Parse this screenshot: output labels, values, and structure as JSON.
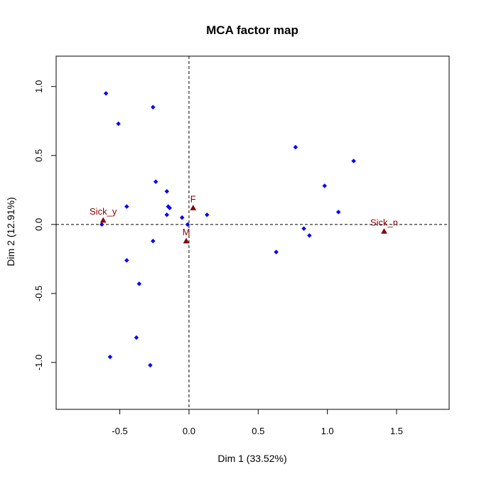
{
  "chart_data": {
    "type": "scatter",
    "title": "MCA factor map",
    "xlabel": "Dim 1 (33.52%)",
    "ylabel": "Dim 2 (12.91%)",
    "xlim": [
      -0.96,
      1.88
    ],
    "ylim": [
      -1.34,
      1.22
    ],
    "xticks": [
      -0.5,
      0.0,
      0.5,
      1.0,
      1.5
    ],
    "xtick_labels": [
      "-0.5",
      "0.0",
      "0.5",
      "1.0",
      "1.5"
    ],
    "yticks": [
      -1.0,
      -0.5,
      0.0,
      0.5,
      1.0
    ],
    "ytick_labels": [
      "-1.0",
      "-0.5",
      "0.0",
      "0.5",
      "1.0"
    ],
    "reference_lines": {
      "x": 0,
      "y": 0,
      "style": "dashed"
    },
    "grid": false,
    "colors": {
      "individuals": "#0000ff",
      "categories": "#8b0000"
    },
    "individuals": {
      "marker": "diamond",
      "points": [
        {
          "x": -0.6,
          "y": 0.95
        },
        {
          "x": -0.26,
          "y": 0.85
        },
        {
          "x": -0.51,
          "y": 0.73
        },
        {
          "x": 0.77,
          "y": 0.56
        },
        {
          "x": 1.19,
          "y": 0.46
        },
        {
          "x": -0.24,
          "y": 0.31
        },
        {
          "x": 0.98,
          "y": 0.28
        },
        {
          "x": -0.16,
          "y": 0.24
        },
        {
          "x": -0.45,
          "y": 0.13
        },
        {
          "x": -0.15,
          "y": 0.13
        },
        {
          "x": -0.14,
          "y": 0.12
        },
        {
          "x": 1.08,
          "y": 0.09
        },
        {
          "x": -0.16,
          "y": 0.07
        },
        {
          "x": 0.13,
          "y": 0.07
        },
        {
          "x": -0.05,
          "y": 0.05
        },
        {
          "x": -0.01,
          "y": 0.0
        },
        {
          "x": -0.63,
          "y": 0.0
        },
        {
          "x": 0.83,
          "y": -0.03
        },
        {
          "x": 0.87,
          "y": -0.08
        },
        {
          "x": -0.26,
          "y": -0.12
        },
        {
          "x": 0.63,
          "y": -0.2
        },
        {
          "x": -0.45,
          "y": -0.26
        },
        {
          "x": -0.36,
          "y": -0.43
        },
        {
          "x": -0.38,
          "y": -0.82
        },
        {
          "x": -0.57,
          "y": -0.96
        },
        {
          "x": -0.28,
          "y": -1.02
        }
      ]
    },
    "categories": {
      "marker": "triangle",
      "points": [
        {
          "label": "Sick_y",
          "x": -0.62,
          "y": 0.03
        },
        {
          "label": "F",
          "x": 0.03,
          "y": 0.12
        },
        {
          "label": "M",
          "x": -0.02,
          "y": -0.12
        },
        {
          "label": "Sick_n",
          "x": 1.41,
          "y": -0.05
        }
      ]
    }
  }
}
